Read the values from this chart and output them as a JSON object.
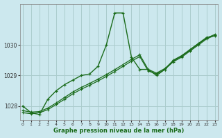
{
  "title": "Graphe pression niveau de la mer (hPa)",
  "background_color": "#cce8ee",
  "plot_bg_color": "#cce8ee",
  "grid_color": "#aacccc",
  "line_color": "#1a6b1a",
  "x_ticks": [
    0,
    1,
    2,
    3,
    4,
    5,
    6,
    7,
    8,
    9,
    10,
    11,
    12,
    13,
    14,
    15,
    16,
    17,
    18,
    19,
    20,
    21,
    22,
    23
  ],
  "y_ticks": [
    1028,
    1029,
    1030
  ],
  "ylim": [
    1027.55,
    1031.35
  ],
  "xlim": [
    -0.3,
    23.3
  ],
  "series1_x": [
    0,
    1,
    2,
    3,
    4,
    5,
    6,
    7,
    8,
    9,
    10,
    11,
    12,
    13,
    14,
    15,
    16,
    17,
    18,
    19,
    20,
    21,
    22,
    23
  ],
  "series1_y": [
    1028.0,
    1027.78,
    1027.72,
    1028.22,
    1028.5,
    1028.7,
    1028.85,
    1029.0,
    1029.05,
    1029.3,
    1030.0,
    1031.05,
    1031.05,
    1029.6,
    1029.2,
    1029.2,
    1029.0,
    1029.2,
    1029.5,
    1029.65,
    1029.85,
    1030.05,
    1030.25,
    1030.3
  ],
  "series2_x": [
    0,
    1,
    2,
    3,
    4,
    5,
    6,
    7,
    8,
    9,
    10,
    11,
    12,
    13,
    14,
    15,
    16,
    17,
    18,
    19,
    20,
    21,
    22,
    23
  ],
  "series2_y": [
    1027.78,
    1027.75,
    1027.78,
    1027.88,
    1028.05,
    1028.22,
    1028.4,
    1028.55,
    1028.68,
    1028.82,
    1028.97,
    1029.13,
    1029.3,
    1029.47,
    1029.62,
    1029.15,
    1029.05,
    1029.2,
    1029.45,
    1029.6,
    1029.8,
    1030.0,
    1030.2,
    1030.32
  ],
  "series3_x": [
    0,
    1,
    2,
    3,
    4,
    5,
    6,
    7,
    8,
    9,
    10,
    11,
    12,
    13,
    14,
    15,
    16,
    17,
    18,
    19,
    20,
    21,
    22,
    23
  ],
  "series3_y": [
    1027.85,
    1027.8,
    1027.82,
    1027.93,
    1028.1,
    1028.28,
    1028.46,
    1028.61,
    1028.74,
    1028.88,
    1029.03,
    1029.19,
    1029.36,
    1029.53,
    1029.68,
    1029.2,
    1029.08,
    1029.23,
    1029.48,
    1029.63,
    1029.83,
    1030.03,
    1030.23,
    1030.35
  ]
}
